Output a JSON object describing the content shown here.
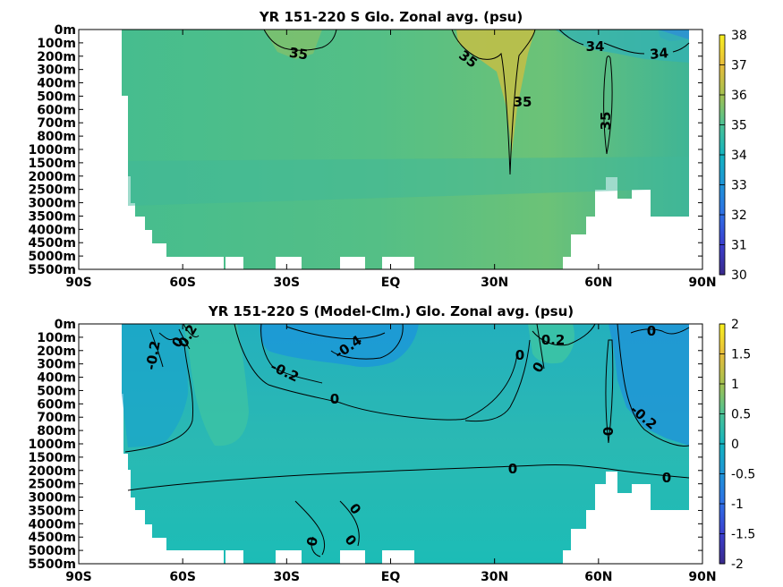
{
  "chart_data": [
    {
      "type": "heatmap",
      "title": "YR 151-220 S Glo. Zonal avg. (psu)",
      "x_ticks": [
        "90S",
        "60S",
        "30S",
        "EQ",
        "30N",
        "60N",
        "90N"
      ],
      "y_ticks": [
        "0m",
        "100m",
        "200m",
        "300m",
        "400m",
        "500m",
        "600m",
        "700m",
        "800m",
        "1000m",
        "1500m",
        "2000m",
        "2500m",
        "3000m",
        "3500m",
        "4000m",
        "4500m",
        "5000m",
        "5500m"
      ],
      "colorbar": {
        "min": 30,
        "max": 38,
        "ticks": [
          "30",
          "31",
          "32",
          "33",
          "34",
          "35",
          "36",
          "37",
          "38"
        ]
      },
      "contour_labels": [
        "35",
        "35",
        "35",
        "35",
        "34",
        "34"
      ]
    },
    {
      "type": "heatmap",
      "title": "YR 151-220 S (Model-Clm.) Glo. Zonal avg. (psu)",
      "x_ticks": [
        "90S",
        "60S",
        "30S",
        "EQ",
        "30N",
        "60N",
        "90N"
      ],
      "y_ticks": [
        "0m",
        "100m",
        "200m",
        "300m",
        "400m",
        "500m",
        "600m",
        "700m",
        "800m",
        "1000m",
        "1500m",
        "2000m",
        "2500m",
        "3000m",
        "3500m",
        "4000m",
        "4500m",
        "5000m",
        "5500m"
      ],
      "colorbar": {
        "min": -2,
        "max": 2,
        "ticks": [
          "-2",
          "-1.5",
          "-1",
          "-0.5",
          "0",
          "0.5",
          "1",
          "1.5",
          "2"
        ]
      },
      "contour_labels": [
        "-0.2",
        "0",
        "0.2",
        "-0.2",
        "-0.4",
        "0",
        "0",
        "0",
        "0.2",
        "0",
        "-0.2",
        "0",
        "0",
        "0",
        "0",
        "0",
        "0"
      ]
    }
  ]
}
